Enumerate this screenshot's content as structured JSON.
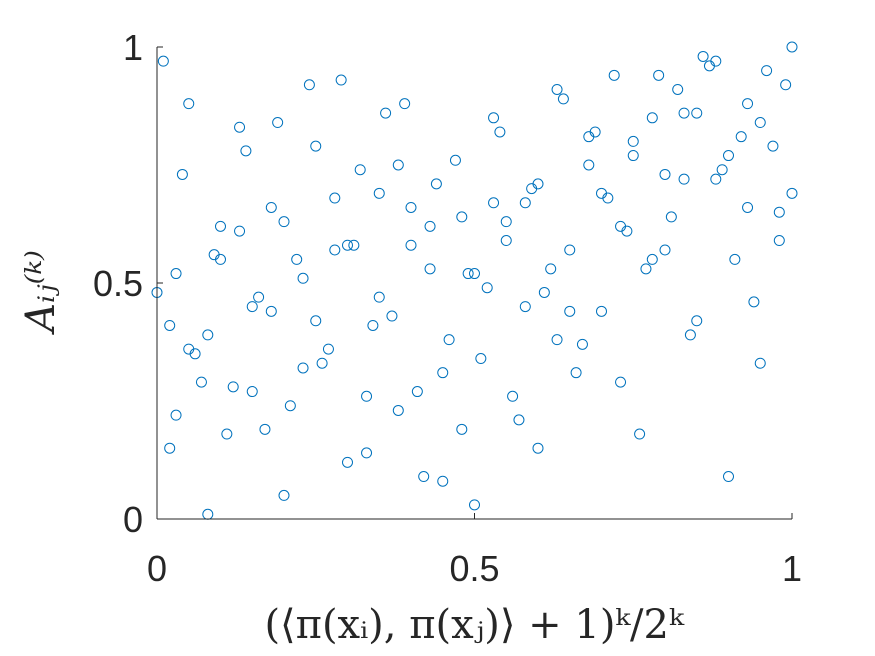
{
  "chart_data": {
    "type": "scatter",
    "title": "",
    "xlabel": "(⟨π(xᵢ), π(xⱼ)⟩ + 1)ᵏ/2ᵏ",
    "ylabel": "Aᵢⱼ⁽ᵏ⁾",
    "xlim": [
      0,
      1
    ],
    "ylim": [
      0,
      1
    ],
    "xticks": [
      0,
      0.5,
      1
    ],
    "yticks": [
      0,
      0.5,
      1
    ],
    "xtick_labels": [
      "0",
      "0.5",
      "1"
    ],
    "ytick_labels": [
      "0",
      "0.5",
      "1"
    ],
    "grid": false,
    "legend": "none",
    "marker": "open-circle",
    "color": "#0072BD",
    "series": [
      {
        "x": [
          0.01,
          0.02,
          0.03,
          0.05,
          0.06,
          0.08,
          0.1,
          0.12,
          0.14,
          0.15,
          0.17,
          0.19,
          0.2,
          0.22,
          0.24,
          0.26,
          0.28,
          0.3,
          0.32,
          0.34,
          0.36,
          0.38,
          0.4,
          0.42,
          0.44,
          0.46,
          0.48,
          0.5,
          0.52,
          0.54,
          0.56,
          0.58,
          0.6,
          0.62,
          0.64,
          0.66,
          0.68,
          0.7,
          0.72,
          0.74,
          0.76,
          0.78,
          0.8,
          0.82,
          0.84,
          0.86,
          0.88,
          0.9,
          0.92,
          0.94,
          0.96,
          0.98,
          1.0,
          0.02,
          0.04,
          0.07,
          0.09,
          0.11,
          0.13,
          0.16,
          0.18,
          0.21,
          0.23,
          0.25,
          0.27,
          0.29,
          0.31,
          0.33,
          0.35,
          0.37,
          0.39,
          0.41,
          0.43,
          0.45,
          0.47,
          0.49,
          0.51,
          0.53,
          0.55,
          0.57,
          0.59,
          0.61,
          0.63,
          0.65,
          0.67,
          0.69,
          0.71,
          0.73,
          0.75,
          0.77,
          0.79,
          0.81,
          0.83,
          0.85,
          0.87,
          0.89,
          0.91,
          0.93,
          0.95,
          0.97,
          0.99,
          0.0,
          0.05,
          0.1,
          0.15,
          0.2,
          0.25,
          0.3,
          0.35,
          0.4,
          0.45,
          0.5,
          0.55,
          0.6,
          0.65,
          0.7,
          0.75,
          0.8,
          0.85,
          0.9,
          0.95,
          1.0,
          0.03,
          0.08,
          0.13,
          0.18,
          0.23,
          0.28,
          0.33,
          0.38,
          0.43,
          0.48,
          0.53,
          0.58,
          0.63,
          0.68,
          0.73,
          0.78,
          0.83,
          0.88,
          0.93,
          0.98
        ],
        "y": [
          0.97,
          0.15,
          0.52,
          0.88,
          0.35,
          0.01,
          0.62,
          0.28,
          0.78,
          0.45,
          0.19,
          0.84,
          0.05,
          0.55,
          0.92,
          0.33,
          0.68,
          0.12,
          0.74,
          0.41,
          0.86,
          0.23,
          0.58,
          0.09,
          0.71,
          0.38,
          0.64,
          0.03,
          0.49,
          0.82,
          0.26,
          0.67,
          0.15,
          0.53,
          0.89,
          0.31,
          0.75,
          0.44,
          0.94,
          0.61,
          0.18,
          0.85,
          0.57,
          0.91,
          0.39,
          0.98,
          0.72,
          0.09,
          0.81,
          0.46,
          0.95,
          0.65,
          1.0,
          0.41,
          0.73,
          0.29,
          0.56,
          0.18,
          0.83,
          0.47,
          0.66,
          0.24,
          0.51,
          0.79,
          0.36,
          0.93,
          0.58,
          0.14,
          0.69,
          0.43,
          0.88,
          0.27,
          0.62,
          0.08,
          0.76,
          0.52,
          0.34,
          0.85,
          0.63,
          0.21,
          0.7,
          0.48,
          0.91,
          0.57,
          0.37,
          0.82,
          0.68,
          0.29,
          0.77,
          0.53,
          0.94,
          0.64,
          0.86,
          0.42,
          0.96,
          0.74,
          0.55,
          0.88,
          0.33,
          0.79,
          0.92,
          0.48,
          0.36,
          0.55,
          0.27,
          0.63,
          0.42,
          0.58,
          0.47,
          0.66,
          0.31,
          0.52,
          0.59,
          0.71,
          0.44,
          0.69,
          0.8,
          0.73,
          0.86,
          0.77,
          0.84,
          0.69,
          0.22,
          0.39,
          0.61,
          0.44,
          0.32,
          0.57,
          0.26,
          0.75,
          0.53,
          0.19,
          0.67,
          0.45,
          0.38,
          0.81,
          0.62,
          0.55,
          0.72,
          0.97,
          0.66,
          0.59
        ]
      }
    ]
  }
}
